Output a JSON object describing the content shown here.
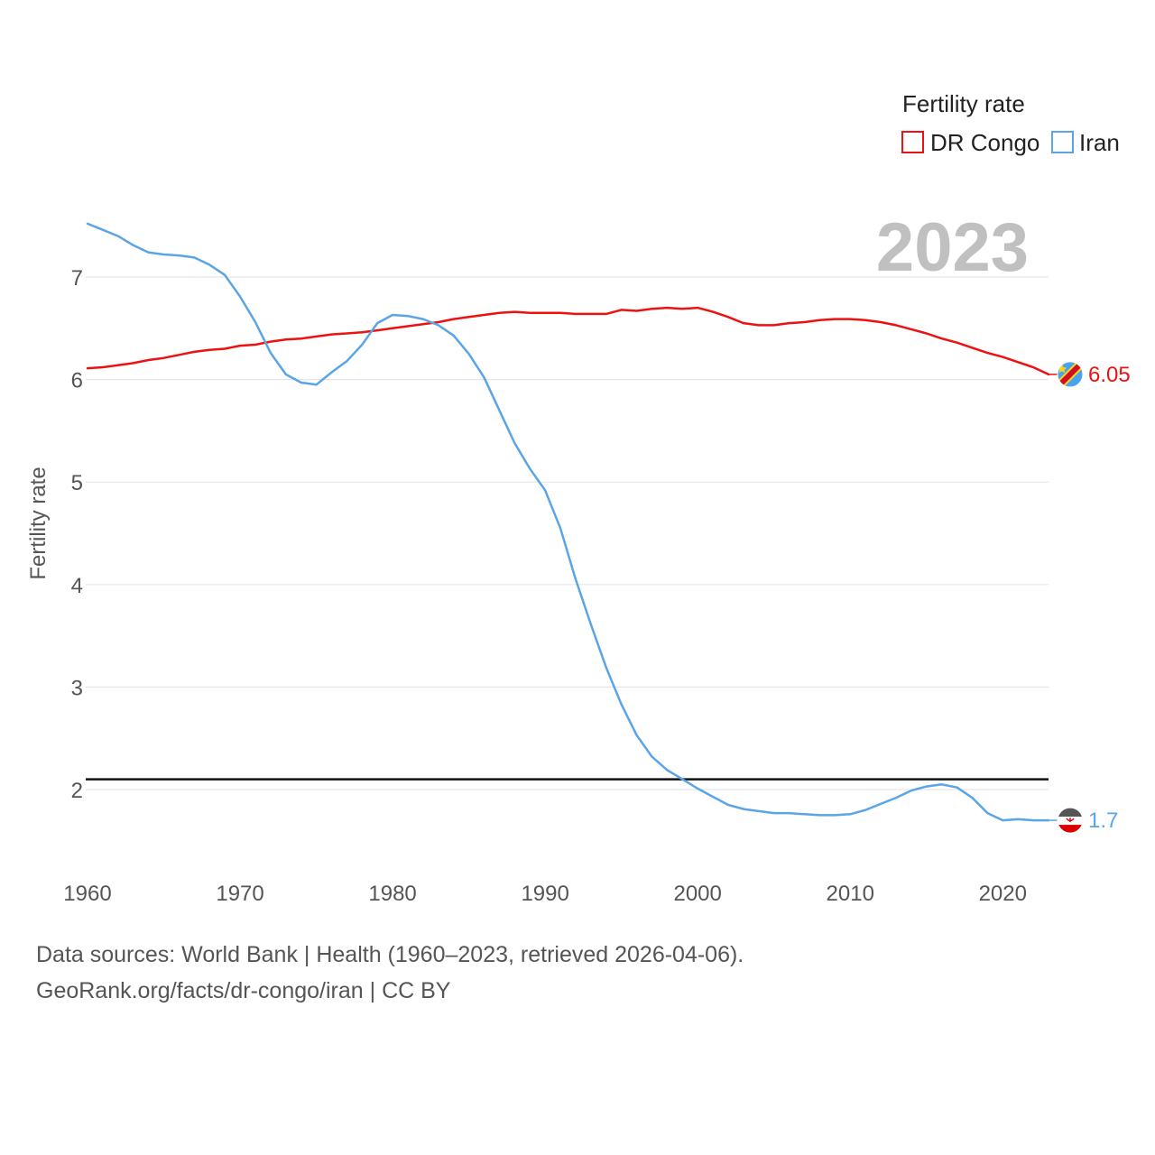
{
  "chart_data": {
    "type": "line",
    "title": "",
    "legend_title": "Fertility rate",
    "ylabel": "Fertility rate",
    "xlabel": "",
    "current_year_label": "2023",
    "xlim": [
      1960,
      2023
    ],
    "ylim": [
      1.2,
      7.6
    ],
    "x_ticks": [
      1960,
      1970,
      1980,
      1990,
      2000,
      2010,
      2020
    ],
    "y_ticks": [
      2,
      3,
      4,
      5,
      6,
      7
    ],
    "reference_line": {
      "value": 2.1,
      "color": "#111111"
    },
    "legend_position": "top-right",
    "series": [
      {
        "name": "DR Congo",
        "color": "#ee1111",
        "end_label": "6.05",
        "flag_icon": "dr-congo-flag-icon",
        "x": [
          1960,
          1961,
          1962,
          1963,
          1964,
          1965,
          1966,
          1967,
          1968,
          1969,
          1970,
          1971,
          1972,
          1973,
          1974,
          1975,
          1976,
          1977,
          1978,
          1979,
          1980,
          1981,
          1982,
          1983,
          1984,
          1985,
          1986,
          1987,
          1988,
          1989,
          1990,
          1991,
          1992,
          1993,
          1994,
          1995,
          1996,
          1997,
          1998,
          1999,
          2000,
          2001,
          2002,
          2003,
          2004,
          2005,
          2006,
          2007,
          2008,
          2009,
          2010,
          2011,
          2012,
          2013,
          2014,
          2015,
          2016,
          2017,
          2018,
          2019,
          2020,
          2021,
          2022,
          2023
        ],
        "values": [
          6.11,
          6.12,
          6.14,
          6.16,
          6.19,
          6.21,
          6.24,
          6.27,
          6.29,
          6.3,
          6.33,
          6.34,
          6.37,
          6.39,
          6.4,
          6.42,
          6.44,
          6.45,
          6.46,
          6.48,
          6.5,
          6.52,
          6.54,
          6.56,
          6.59,
          6.61,
          6.63,
          6.65,
          6.66,
          6.65,
          6.65,
          6.65,
          6.64,
          6.64,
          6.64,
          6.68,
          6.67,
          6.69,
          6.7,
          6.69,
          6.7,
          6.66,
          6.61,
          6.55,
          6.53,
          6.53,
          6.55,
          6.56,
          6.58,
          6.59,
          6.59,
          6.58,
          6.56,
          6.53,
          6.49,
          6.45,
          6.4,
          6.36,
          6.31,
          6.26,
          6.22,
          6.17,
          6.12,
          6.05
        ]
      },
      {
        "name": "Iran",
        "color": "#5ba4e5",
        "end_label": "1.7",
        "flag_icon": "iran-flag-icon",
        "x": [
          1960,
          1961,
          1962,
          1963,
          1964,
          1965,
          1966,
          1967,
          1968,
          1969,
          1970,
          1971,
          1972,
          1973,
          1974,
          1975,
          1976,
          1977,
          1978,
          1979,
          1980,
          1981,
          1982,
          1983,
          1984,
          1985,
          1986,
          1987,
          1988,
          1989,
          1990,
          1991,
          1992,
          1993,
          1994,
          1995,
          1996,
          1997,
          1998,
          1999,
          2000,
          2001,
          2002,
          2003,
          2004,
          2005,
          2006,
          2007,
          2008,
          2009,
          2010,
          2011,
          2012,
          2013,
          2014,
          2015,
          2016,
          2017,
          2018,
          2019,
          2020,
          2021,
          2022,
          2023
        ],
        "values": [
          7.52,
          7.46,
          7.4,
          7.31,
          7.24,
          7.22,
          7.21,
          7.19,
          7.12,
          7.02,
          6.81,
          6.56,
          6.26,
          6.05,
          5.97,
          5.95,
          6.07,
          6.18,
          6.34,
          6.55,
          6.63,
          6.62,
          6.59,
          6.53,
          6.43,
          6.25,
          6.02,
          5.7,
          5.38,
          5.13,
          4.92,
          4.55,
          4.05,
          3.61,
          3.19,
          2.83,
          2.53,
          2.32,
          2.19,
          2.1,
          2.01,
          1.93,
          1.85,
          1.81,
          1.79,
          1.77,
          1.77,
          1.76,
          1.75,
          1.75,
          1.76,
          1.8,
          1.86,
          1.92,
          1.99,
          2.03,
          2.05,
          2.02,
          1.92,
          1.77,
          1.7,
          1.71,
          1.7,
          1.7
        ]
      }
    ]
  },
  "footer": {
    "sources": "Data sources: World Bank | Health (1960–2023, retrieved 2026-04-06).",
    "credit": "GeoRank.org/facts/dr-congo/iran | CC BY"
  }
}
